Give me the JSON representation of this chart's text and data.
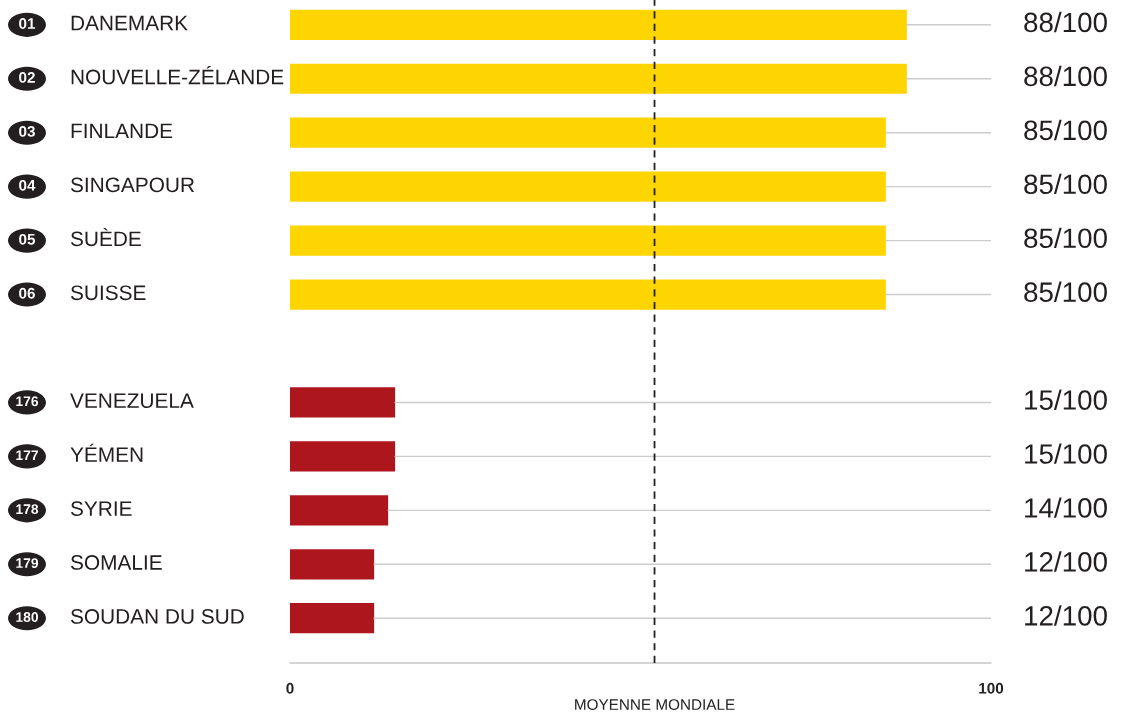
{
  "chart_data": {
    "type": "bar",
    "orientation": "horizontal",
    "categories": [
      "01 DANEMARK",
      "02 NOUVELLE-ZÉLANDE",
      "03 FINLANDE",
      "04 SINGAPOUR",
      "05 SUÈDE",
      "06 SUISSE",
      null,
      "176 VENEZUELA",
      "177 YÉMEN",
      "178 SYRIE",
      "179 SOMALIE",
      "180 SOUDAN DU SUD"
    ],
    "values": [
      88,
      88,
      85,
      85,
      85,
      85,
      null,
      15,
      15,
      14,
      12,
      12
    ],
    "colors": [
      "#ffd500",
      "#ffd500",
      "#ffd500",
      "#ffd500",
      "#ffd500",
      "#ffd500",
      null,
      "#ae161d",
      "#ae161d",
      "#ae161d",
      "#ae161d",
      "#ae161d"
    ],
    "value_labels": [
      "88/100",
      "88/100",
      "85/100",
      "85/100",
      "85/100",
      "85/100",
      null,
      "15/100",
      "15/100",
      "14/100",
      "12/100",
      "12/100"
    ],
    "xlim": [
      0,
      100
    ],
    "xticks": [
      0,
      100
    ],
    "grid": false,
    "ref_lines": [
      {
        "axis": "x",
        "value": 52,
        "label": "MOYENNE MONDIALE",
        "color": "#222222",
        "line_style": "dashed"
      }
    ]
  }
}
